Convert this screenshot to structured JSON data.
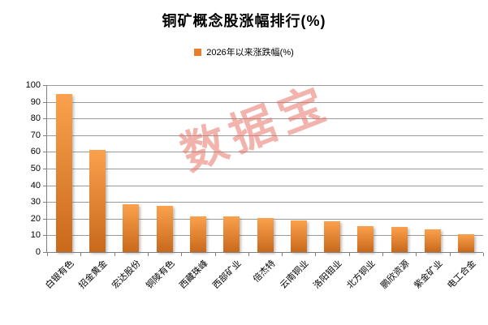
{
  "title": "铜矿概念股涨幅排行(%)",
  "legend": {
    "label": "2026年以来涨跌幅(%)",
    "swatch_color": "#E87E2B"
  },
  "watermark": {
    "text": "数据宝",
    "color": "rgba(232,104,92,0.5)"
  },
  "colors": {
    "bar_gradient_top": "#FBA14D",
    "bar_gradient_bottom": "#C8691B",
    "gridline": "#9a9a9a",
    "axis": "#7f7f7f",
    "text": "#000000",
    "background": "#ffffff"
  },
  "chart_data": {
    "type": "bar",
    "title": "铜矿概念股涨幅排行(%)",
    "series_name": "2026年以来涨跌幅(%)",
    "categories": [
      "白银有色",
      "招金黄金",
      "宏达股份",
      "铜陵有色",
      "西藏珠峰",
      "西部矿业",
      "倍杰特",
      "云南铜业",
      "洛阳钼业",
      "北方铜业",
      "鹏欣资源",
      "紫金矿业",
      "电工合金"
    ],
    "values": [
      94.5,
      61,
      28.7,
      27.7,
      21.5,
      21.2,
      20.2,
      19,
      18.3,
      15.5,
      15,
      13.5,
      10.5
    ],
    "xlabel": "",
    "ylabel": "",
    "ylim": [
      0,
      100
    ],
    "ytick_step": 10,
    "grid": true,
    "legend_position": "top",
    "xlabel_rotation_deg": -45
  }
}
